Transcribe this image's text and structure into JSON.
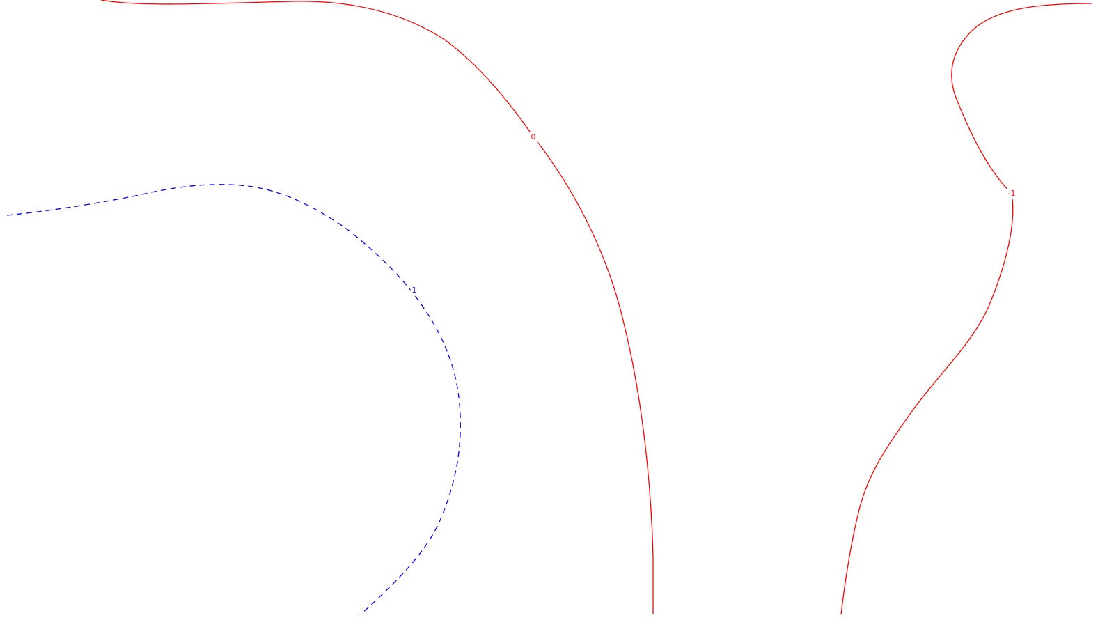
{
  "chart_data": {
    "type": "contour",
    "title": "",
    "xlabel": "",
    "ylabel": "",
    "grid": false,
    "legend": "none",
    "levels": [
      {
        "id": "level-1",
        "value": 1,
        "label": "1",
        "color": "#0000ff",
        "style": "dashed"
      },
      {
        "id": "level-0",
        "value": 0,
        "label": "0",
        "color": "#ff0000",
        "style": "solid"
      },
      {
        "id": "level-neg1",
        "value": -1,
        "label": "-1",
        "color": "#ff0000",
        "style": "solid"
      }
    ]
  }
}
